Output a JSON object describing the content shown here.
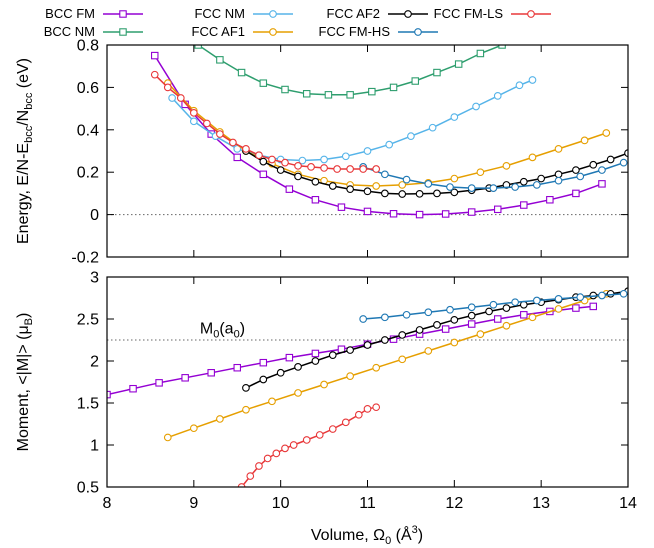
{
  "chart_data": [
    {
      "type": "line",
      "panel": "top",
      "ylabel": "Energy, E/N-E",
      "ylabel_sub1": "bcc",
      "ylabel_mid": "/N",
      "ylabel_sub2": "bcc",
      "ylabel_unit": " (eV)",
      "xlim": [
        8,
        14
      ],
      "ylim": [
        -0.2,
        0.8
      ],
      "yticks": [
        "-0.2",
        "0",
        "0.2",
        "0.4",
        "0.6",
        "0.8"
      ],
      "ytick_values": [
        -0.2,
        0,
        0.2,
        0.4,
        0.6,
        0.8
      ],
      "grid": false,
      "reference_line": {
        "y": 0,
        "style": "dotted"
      },
      "legend_position": "top",
      "series": [
        {
          "name": "BCC FM",
          "color": "#9400d3",
          "marker": "square",
          "x": [
            8.55,
            8.9,
            9.2,
            9.5,
            9.8,
            10.1,
            10.4,
            10.7,
            11.0,
            11.3,
            11.6,
            11.9,
            12.2,
            12.5,
            12.8,
            13.1,
            13.4,
            13.7
          ],
          "y": [
            0.75,
            0.52,
            0.38,
            0.27,
            0.19,
            0.12,
            0.07,
            0.035,
            0.015,
            0.004,
            0.0,
            0.003,
            0.012,
            0.025,
            0.045,
            0.07,
            0.1,
            0.145
          ]
        },
        {
          "name": "BCC NM",
          "color": "#2e9e6e",
          "marker": "square",
          "x": [
            9.05,
            9.3,
            9.55,
            9.8,
            10.05,
            10.3,
            10.55,
            10.8,
            11.05,
            11.3,
            11.55,
            11.8,
            12.05,
            12.3,
            12.55
          ],
          "y": [
            0.8,
            0.73,
            0.67,
            0.62,
            0.59,
            0.57,
            0.565,
            0.565,
            0.58,
            0.6,
            0.63,
            0.67,
            0.71,
            0.76,
            0.8
          ]
        },
        {
          "name": "FCC NM",
          "color": "#56b4e9",
          "marker": "circle",
          "x": [
            8.75,
            9.0,
            9.25,
            9.5,
            9.75,
            10.0,
            10.25,
            10.5,
            10.75,
            11.0,
            11.25,
            11.5,
            11.75,
            12.0,
            12.25,
            12.5,
            12.75,
            12.9
          ],
          "y": [
            0.55,
            0.44,
            0.37,
            0.31,
            0.28,
            0.26,
            0.255,
            0.26,
            0.275,
            0.3,
            0.33,
            0.37,
            0.41,
            0.46,
            0.51,
            0.56,
            0.61,
            0.635
          ]
        },
        {
          "name": "FCC AF1",
          "color": "#e69f00",
          "marker": "circle",
          "x": [
            8.7,
            9.0,
            9.3,
            9.6,
            9.9,
            10.2,
            10.5,
            10.8,
            11.1,
            11.4,
            11.7,
            12.0,
            12.3,
            12.6,
            12.9,
            13.2,
            13.5,
            13.75
          ],
          "y": [
            0.62,
            0.49,
            0.39,
            0.3,
            0.24,
            0.19,
            0.16,
            0.14,
            0.135,
            0.14,
            0.15,
            0.17,
            0.2,
            0.23,
            0.27,
            0.31,
            0.35,
            0.385
          ]
        },
        {
          "name": "FCC AF2",
          "color": "#000000",
          "marker": "circle",
          "x": [
            9.6,
            9.8,
            10.0,
            10.2,
            10.4,
            10.6,
            10.8,
            11.0,
            11.2,
            11.4,
            11.6,
            11.8,
            12.0,
            12.2,
            12.4,
            12.6,
            12.8,
            13.0,
            13.2,
            13.4,
            13.6,
            13.8,
            14.0
          ],
          "y": [
            0.3,
            0.25,
            0.21,
            0.18,
            0.155,
            0.135,
            0.12,
            0.11,
            0.1,
            0.097,
            0.098,
            0.1,
            0.105,
            0.115,
            0.125,
            0.14,
            0.155,
            0.17,
            0.19,
            0.21,
            0.235,
            0.26,
            0.29
          ]
        },
        {
          "name": "FCC FM-HS",
          "color": "#1f78b4",
          "marker": "circle",
          "x": [
            10.95,
            11.2,
            11.45,
            11.7,
            11.95,
            12.2,
            12.45,
            12.7,
            12.95,
            13.2,
            13.45,
            13.7,
            13.95
          ],
          "y": [
            0.225,
            0.19,
            0.165,
            0.145,
            0.13,
            0.125,
            0.125,
            0.13,
            0.14,
            0.16,
            0.18,
            0.21,
            0.245
          ]
        },
        {
          "name": "FCC FM-LS",
          "color": "#e8383a",
          "marker": "circle",
          "x": [
            8.55,
            8.7,
            8.85,
            9.0,
            9.15,
            9.3,
            9.45,
            9.6,
            9.75,
            9.9,
            10.05,
            10.2,
            10.35,
            10.5,
            10.65,
            10.8,
            10.95,
            11.1
          ],
          "y": [
            0.66,
            0.6,
            0.55,
            0.48,
            0.43,
            0.38,
            0.34,
            0.31,
            0.28,
            0.26,
            0.245,
            0.23,
            0.225,
            0.22,
            0.215,
            0.215,
            0.215,
            0.215
          ]
        }
      ]
    },
    {
      "type": "line",
      "panel": "bottom",
      "xlabel": "Volume, Ω",
      "xlabel_sub": "0",
      "xlabel_unit_open": "  (Å",
      "xlabel_sup": "3",
      "xlabel_unit_close": ")",
      "ylabel": "Moment, <|M|> (μ",
      "ylabel_sub": "B",
      "ylabel_close": ")",
      "xlim": [
        8,
        14
      ],
      "ylim": [
        0.5,
        3
      ],
      "xticks": [
        "8",
        "9",
        "10",
        "11",
        "12",
        "13",
        "14"
      ],
      "xtick_values": [
        8,
        9,
        10,
        11,
        12,
        13,
        14
      ],
      "yticks": [
        "0.5",
        "1",
        "1.5",
        "2",
        "2.5",
        "3"
      ],
      "ytick_values": [
        0.5,
        1,
        1.5,
        2,
        2.5,
        3
      ],
      "grid": false,
      "reference_line": {
        "y": 2.25,
        "style": "dotted"
      },
      "annotation": {
        "text": "M",
        "sub": "0",
        "tail": "(a",
        "sub2": "0",
        "close": ")",
        "x": 9.3,
        "y": 2.33
      },
      "series": [
        {
          "name": "BCC FM",
          "color": "#9400d3",
          "marker": "square",
          "x": [
            8.0,
            8.3,
            8.6,
            8.9,
            9.2,
            9.5,
            9.8,
            10.1,
            10.4,
            10.7,
            11.0,
            11.3,
            11.6,
            11.9,
            12.2,
            12.5,
            12.8,
            13.1,
            13.4,
            13.6
          ],
          "y": [
            1.6,
            1.67,
            1.74,
            1.8,
            1.86,
            1.92,
            1.98,
            2.04,
            2.09,
            2.14,
            2.2,
            2.26,
            2.32,
            2.38,
            2.44,
            2.5,
            2.55,
            2.59,
            2.63,
            2.65
          ]
        },
        {
          "name": "FCC AF1",
          "color": "#e69f00",
          "marker": "circle",
          "x": [
            8.7,
            9.0,
            9.3,
            9.6,
            9.9,
            10.2,
            10.5,
            10.8,
            11.1,
            11.4,
            11.7,
            12.0,
            12.3,
            12.6,
            12.9,
            13.2,
            13.5,
            13.75
          ],
          "y": [
            1.09,
            1.2,
            1.31,
            1.42,
            1.52,
            1.62,
            1.72,
            1.82,
            1.92,
            2.02,
            2.12,
            2.22,
            2.32,
            2.42,
            2.52,
            2.62,
            2.72,
            2.8
          ]
        },
        {
          "name": "FCC AF2",
          "color": "#000000",
          "marker": "circle",
          "x": [
            9.6,
            9.8,
            10.0,
            10.2,
            10.4,
            10.6,
            10.8,
            11.0,
            11.2,
            11.4,
            11.6,
            11.8,
            12.0,
            12.2,
            12.4,
            12.6,
            12.8,
            13.0,
            13.2,
            13.4,
            13.6,
            13.8,
            14.0
          ],
          "y": [
            1.68,
            1.78,
            1.86,
            1.93,
            2.0,
            2.07,
            2.13,
            2.19,
            2.25,
            2.31,
            2.37,
            2.43,
            2.49,
            2.54,
            2.59,
            2.63,
            2.67,
            2.7,
            2.73,
            2.76,
            2.78,
            2.8,
            2.83
          ]
        },
        {
          "name": "FCC FM-HS",
          "color": "#1f78b4",
          "marker": "circle",
          "x": [
            10.95,
            11.2,
            11.45,
            11.7,
            11.95,
            12.2,
            12.45,
            12.7,
            12.95,
            13.2,
            13.45,
            13.7,
            13.95
          ],
          "y": [
            2.5,
            2.52,
            2.55,
            2.58,
            2.61,
            2.64,
            2.67,
            2.7,
            2.72,
            2.74,
            2.76,
            2.78,
            2.8
          ]
        },
        {
          "name": "FCC FM-LS",
          "color": "#e8383a",
          "marker": "circle",
          "x": [
            9.55,
            9.65,
            9.75,
            9.85,
            9.95,
            10.05,
            10.15,
            10.3,
            10.45,
            10.6,
            10.75,
            10.9,
            11.0,
            11.1
          ],
          "y": [
            0.5,
            0.63,
            0.75,
            0.84,
            0.9,
            0.96,
            1.0,
            1.06,
            1.12,
            1.19,
            1.27,
            1.36,
            1.43,
            1.45
          ]
        }
      ]
    }
  ],
  "legend": [
    {
      "label": "BCC FM",
      "color": "#9400d3",
      "marker": "square"
    },
    {
      "label": "BCC NM",
      "color": "#2e9e6e",
      "marker": "square"
    },
    {
      "label": "FCC NM",
      "color": "#56b4e9",
      "marker": "circle"
    },
    {
      "label": "FCC AF1",
      "color": "#e69f00",
      "marker": "circle"
    },
    {
      "label": "FCC AF2",
      "color": "#000000",
      "marker": "circle"
    },
    {
      "label": "FCC FM-HS",
      "color": "#1f78b4",
      "marker": "circle"
    },
    {
      "label": "FCC FM-LS",
      "color": "#e8383a",
      "marker": "circle"
    }
  ]
}
